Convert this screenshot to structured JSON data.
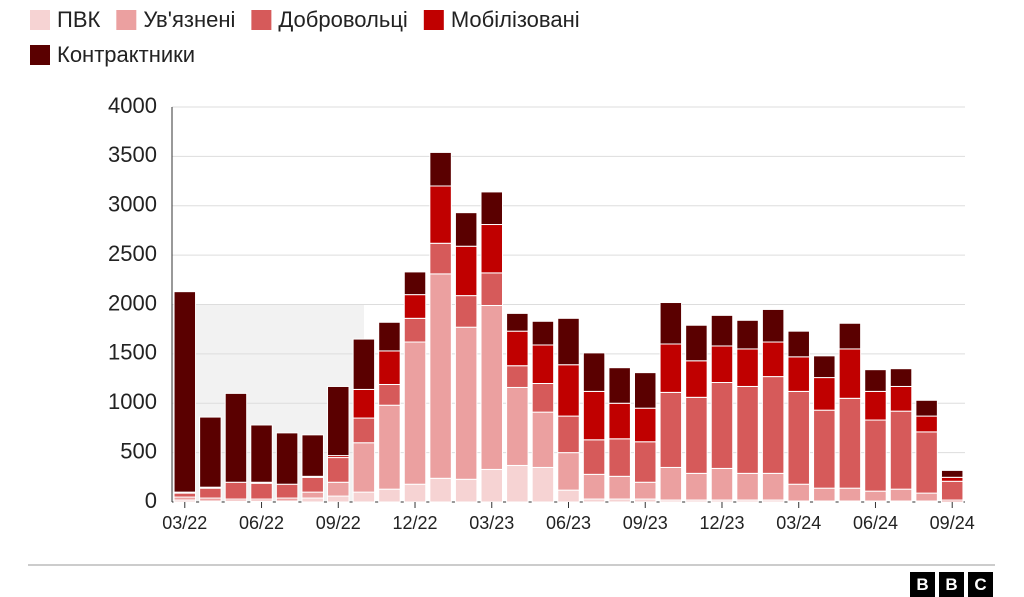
{
  "chart_data": {
    "type": "stacked-bar",
    "categories": [
      "03/22",
      null,
      null,
      "06/22",
      null,
      null,
      "09/22",
      null,
      null,
      "12/22",
      null,
      null,
      "03/23",
      null,
      null,
      "06/23",
      null,
      null,
      "09/23",
      null,
      null,
      "12/23",
      null,
      null,
      "03/24",
      null,
      null,
      "06/24",
      null,
      null,
      "09/24"
    ],
    "series": [
      {
        "name": "ПВК",
        "color": "#f6d3d3",
        "values": [
          20,
          10,
          10,
          10,
          10,
          40,
          60,
          100,
          130,
          180,
          240,
          230,
          330,
          370,
          350,
          120,
          30,
          30,
          30,
          20,
          20,
          20,
          20,
          20,
          10,
          10,
          10,
          10,
          10,
          10,
          0
        ]
      },
      {
        "name": "Ув'язнені",
        "color": "#eba0a0",
        "values": [
          30,
          30,
          20,
          20,
          30,
          60,
          140,
          500,
          850,
          1440,
          2070,
          1540,
          1660,
          790,
          560,
          380,
          250,
          230,
          170,
          330,
          270,
          320,
          270,
          270,
          170,
          130,
          130,
          100,
          120,
          80,
          20
        ]
      },
      {
        "name": "Добровольці",
        "color": "#d65a5a",
        "values": [
          40,
          100,
          170,
          160,
          140,
          150,
          250,
          250,
          210,
          240,
          310,
          320,
          330,
          220,
          290,
          370,
          350,
          380,
          410,
          760,
          770,
          870,
          880,
          980,
          940,
          790,
          910,
          720,
          790,
          620,
          190
        ]
      },
      {
        "name": "Мобілізовані",
        "color": "#c00000",
        "values": [
          10,
          10,
          0,
          10,
          0,
          10,
          20,
          290,
          340,
          240,
          580,
          500,
          490,
          350,
          390,
          520,
          490,
          360,
          340,
          490,
          370,
          370,
          380,
          350,
          350,
          330,
          500,
          290,
          250,
          160,
          40
        ]
      },
      {
        "name": "Контрактники",
        "color": "#5a0000",
        "values": [
          2030,
          710,
          900,
          580,
          520,
          420,
          700,
          510,
          290,
          230,
          340,
          340,
          330,
          180,
          240,
          470,
          390,
          360,
          360,
          420,
          360,
          310,
          290,
          330,
          260,
          220,
          260,
          220,
          180,
          160,
          70
        ]
      }
    ],
    "ylim": [
      0,
      4000
    ],
    "yticks": [
      0,
      500,
      1000,
      1500,
      2000,
      2500,
      3000,
      3500,
      4000
    ],
    "grid": true
  },
  "logo": [
    "B",
    "B",
    "C"
  ]
}
